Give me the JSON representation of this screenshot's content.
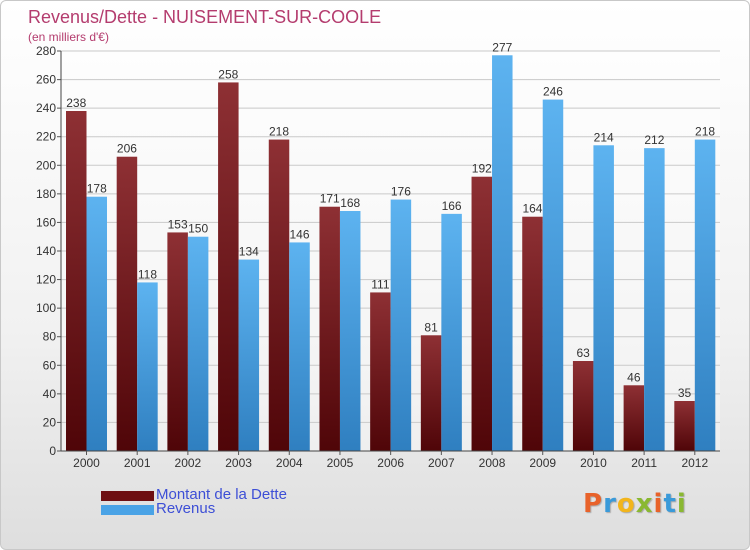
{
  "title": "Revenus/Dette - NUISEMENT-SUR-COOLE",
  "subtitle": "(en milliers d'€)",
  "legend": [
    {
      "label": "Montant de la Dette",
      "color": "#6e0f12"
    },
    {
      "label": "Revenus",
      "color": "#4aa3e6"
    }
  ],
  "logo": {
    "letters": [
      "P",
      "r",
      "o",
      "x",
      "i",
      "t",
      "i"
    ],
    "colors": [
      "#e8622a",
      "#3a9ad9",
      "#f2b51c",
      "#8ab832",
      "#e8622a",
      "#3a9ad9",
      "#8ab832"
    ]
  },
  "chart_data": {
    "type": "bar",
    "title": "Revenus/Dette - NUISEMENT-SUR-COOLE",
    "ylabel": "(en milliers d'€)",
    "categories": [
      "2000",
      "2001",
      "2002",
      "2003",
      "2004",
      "2005",
      "2006",
      "2007",
      "2008",
      "2009",
      "2010",
      "2011",
      "2012"
    ],
    "series": [
      {
        "name": "Montant de la Dette",
        "color": "#6e0f12",
        "values": [
          238,
          206,
          153,
          258,
          218,
          171,
          111,
          81,
          192,
          164,
          63,
          46,
          35
        ]
      },
      {
        "name": "Revenus",
        "color": "#4aa3e6",
        "values": [
          178,
          118,
          150,
          134,
          146,
          168,
          176,
          166,
          277,
          246,
          214,
          212,
          218
        ]
      }
    ],
    "ylim": [
      0,
      280
    ],
    "yticks": [
      0,
      20,
      40,
      60,
      80,
      100,
      120,
      140,
      160,
      180,
      200,
      220,
      240,
      260,
      280
    ],
    "grid": true,
    "legend_position": "bottom-left"
  }
}
